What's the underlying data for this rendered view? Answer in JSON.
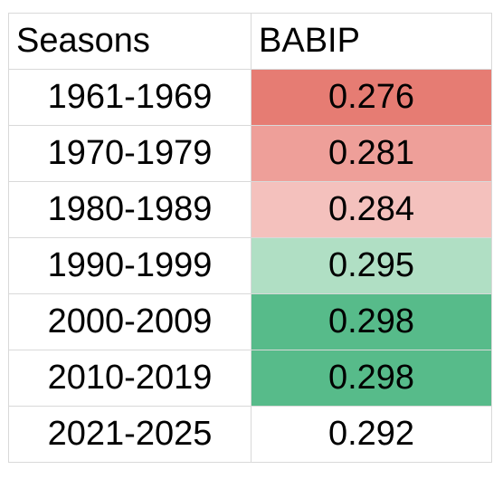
{
  "chart_data": {
    "type": "table",
    "columns": [
      "Seasons",
      "BABIP"
    ],
    "rows": [
      {
        "season": "1961-1969",
        "babip": "0.276",
        "fill": "#e67c73"
      },
      {
        "season": "1970-1979",
        "babip": "0.281",
        "fill": "#ee9f99"
      },
      {
        "season": "1980-1989",
        "babip": "0.284",
        "fill": "#f4c1bd"
      },
      {
        "season": "1990-1999",
        "babip": "0.295",
        "fill": "#b0dfc4"
      },
      {
        "season": "2000-2009",
        "babip": "0.298",
        "fill": "#57bb8a"
      },
      {
        "season": "2010-2019",
        "babip": "0.298",
        "fill": "#57bb8a"
      },
      {
        "season": "2021-2025",
        "babip": "0.292",
        "fill": "#ffffff"
      }
    ]
  }
}
